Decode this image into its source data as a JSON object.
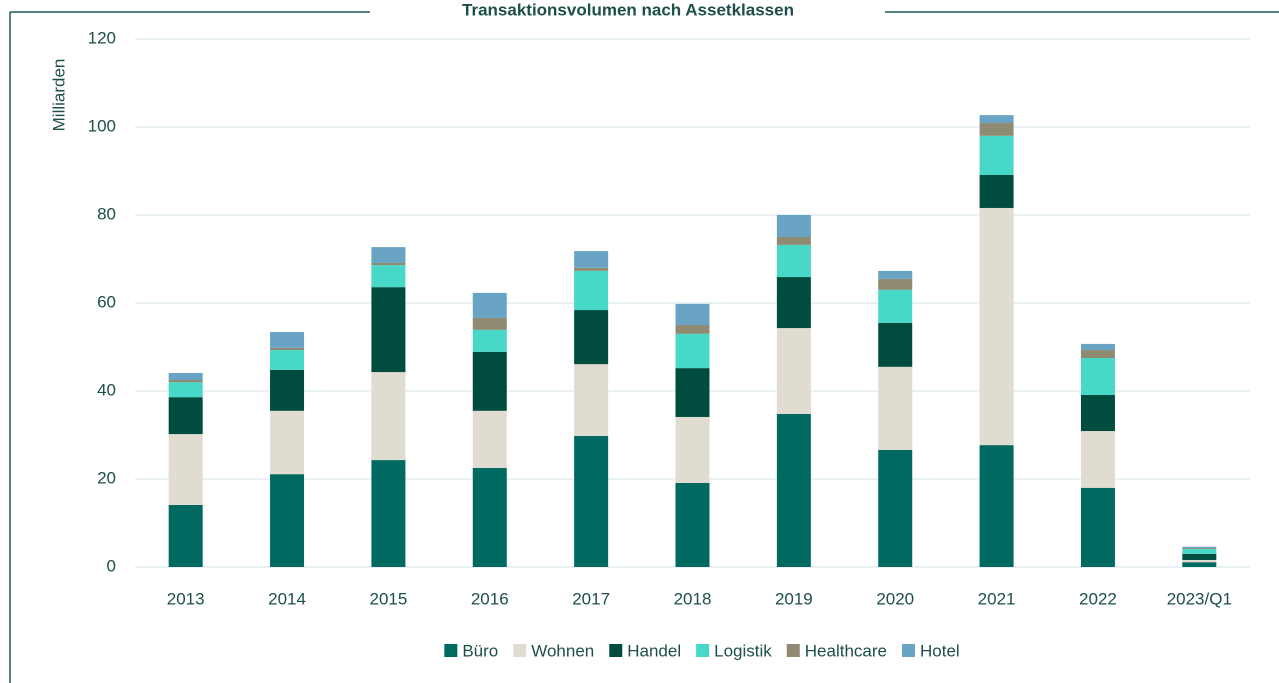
{
  "chart_data": {
    "type": "stacked_bar",
    "title": "Transaktionsvolumen nach Assetklassen",
    "y_label": "Milliarden",
    "categories": [
      "2013",
      "2014",
      "2015",
      "2016",
      "2017",
      "2018",
      "2019",
      "2020",
      "2021",
      "2022",
      "2023/Q1"
    ],
    "series": [
      {
        "name": "Büro",
        "color": "#006a60",
        "values": [
          14.1,
          21.1,
          24.3,
          22.5,
          29.8,
          19.1,
          34.8,
          26.6,
          27.7,
          18.0,
          1.1
        ]
      },
      {
        "name": "Wohnen",
        "color": "#e0dcd2",
        "values": [
          16.1,
          14.4,
          20.0,
          13.0,
          16.3,
          15.0,
          19.5,
          18.9,
          53.9,
          12.9,
          0.5
        ]
      },
      {
        "name": "Handel",
        "color": "#004d40",
        "values": [
          8.4,
          9.3,
          19.3,
          13.4,
          12.3,
          11.1,
          11.6,
          10.0,
          7.5,
          8.2,
          1.4
        ]
      },
      {
        "name": "Logistik",
        "color": "#48d8c8",
        "values": [
          3.4,
          4.5,
          5.0,
          5.0,
          8.9,
          7.8,
          7.3,
          7.5,
          8.9,
          8.4,
          1.1
        ]
      },
      {
        "name": "Healthcare",
        "color": "#8f8a72",
        "values": [
          0.5,
          0.5,
          0.5,
          2.7,
          0.7,
          2.0,
          1.8,
          2.5,
          2.9,
          1.8,
          0.2
        ]
      },
      {
        "name": "Hotel",
        "color": "#6aa4c4",
        "values": [
          1.6,
          3.6,
          3.6,
          5.7,
          3.8,
          4.8,
          5.0,
          1.8,
          1.8,
          1.4,
          0.3
        ]
      }
    ],
    "ylim": [
      0,
      120
    ],
    "yticks": [
      0,
      20,
      40,
      60,
      80,
      100,
      120
    ],
    "grid": true,
    "legend": "bottom"
  }
}
